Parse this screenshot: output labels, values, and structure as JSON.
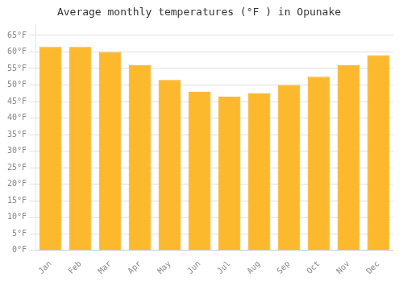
{
  "chart_data": {
    "type": "bar",
    "title": "Average monthly temperatures (°F ) in Opunake",
    "categories": [
      "Jan",
      "Feb",
      "Mar",
      "Apr",
      "May",
      "Jun",
      "Jul",
      "Aug",
      "Sep",
      "Oct",
      "Nov",
      "Dec"
    ],
    "values": [
      61.5,
      61.5,
      60.0,
      56.0,
      51.5,
      48.0,
      46.5,
      47.5,
      50.0,
      52.5,
      56.0,
      59.0
    ],
    "color": "#FDB92E",
    "ylim": [
      0,
      68
    ],
    "yticks": [
      {
        "value": 0,
        "label": "0°F"
      },
      {
        "value": 5,
        "label": "5°F"
      },
      {
        "value": 10,
        "label": "10°F"
      },
      {
        "value": 15,
        "label": "15°F"
      },
      {
        "value": 20,
        "label": "20°F"
      },
      {
        "value": 25,
        "label": "25°F"
      },
      {
        "value": 30,
        "label": "30°F"
      },
      {
        "value": 35,
        "label": "35°F"
      },
      {
        "value": 40,
        "label": "40°F"
      },
      {
        "value": 45,
        "label": "45°F"
      },
      {
        "value": 50,
        "label": "50°F"
      },
      {
        "value": 55,
        "label": "55°F"
      },
      {
        "value": 60,
        "label": "60°F"
      },
      {
        "value": 65,
        "label": "65°F"
      }
    ],
    "grid": true
  }
}
